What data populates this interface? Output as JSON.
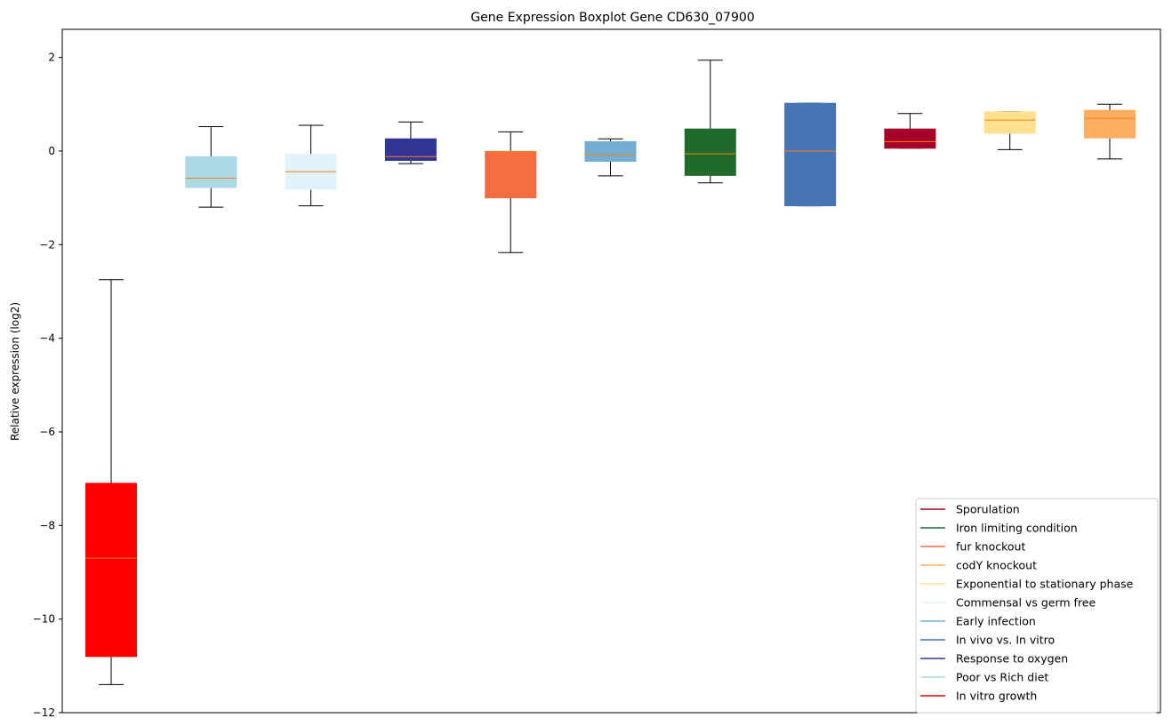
{
  "chart_data": {
    "type": "boxplot",
    "title": "Gene Expression Boxplot Gene CD630_07900",
    "xlabel": "",
    "ylabel": "Relative expression (log2)",
    "ylim": [
      -12.0,
      2.6
    ],
    "yticks": [
      2,
      0,
      -2,
      -4,
      -6,
      -8,
      -10,
      -12
    ],
    "ytick_labels": [
      "2",
      "0",
      "−2",
      "−4",
      "−6",
      "−8",
      "−10",
      "−12"
    ],
    "grid": false,
    "legend_position": "bottom-right",
    "boxes": [
      {
        "name": "In vitro growth",
        "color": "#ff0000",
        "whisker_low": -11.4,
        "q1": -10.8,
        "median": -8.7,
        "q3": -7.1,
        "whisker_high": -2.75
      },
      {
        "name": "Poor vs Rich diet",
        "color": "#add8e6",
        "whisker_low": -1.2,
        "q1": -0.78,
        "median": -0.58,
        "q3": -0.12,
        "whisker_high": 0.52
      },
      {
        "name": "Commensal vs germ free",
        "color": "#e0f3f8",
        "whisker_low": -1.17,
        "q1": -0.82,
        "median": -0.44,
        "q3": -0.07,
        "whisker_high": 0.55
      },
      {
        "name": "Response to oxygen",
        "color": "#313695",
        "whisker_low": -0.27,
        "q1": -0.2,
        "median": -0.12,
        "q3": 0.26,
        "whisker_high": 0.62
      },
      {
        "name": "fur knockout",
        "color": "#f46d43",
        "whisker_low": -2.17,
        "q1": -1.0,
        "median": -0.02,
        "q3": -0.01,
        "whisker_high": 0.41
      },
      {
        "name": "Early infection",
        "color": "#74add1",
        "whisker_low": -0.53,
        "q1": -0.22,
        "median": -0.08,
        "q3": 0.2,
        "whisker_high": 0.26
      },
      {
        "name": "Iron limiting condition",
        "color": "#1f6b2b",
        "whisker_low": -0.68,
        "q1": -0.52,
        "median": -0.06,
        "q3": 0.47,
        "whisker_high": 1.94
      },
      {
        "name": "In vivo vs. In vitro",
        "color": "#4575b4",
        "whisker_low": -1.17,
        "q1": -1.17,
        "median": 0.0,
        "q3": 1.02,
        "whisker_high": 1.02
      },
      {
        "name": "Sporulation",
        "color": "#a50026",
        "whisker_low": 0.06,
        "q1": 0.06,
        "median": 0.2,
        "q3": 0.47,
        "whisker_high": 0.8
      },
      {
        "name": "Exponential to stationary phase",
        "color": "#fee090",
        "whisker_low": 0.03,
        "q1": 0.38,
        "median": 0.66,
        "q3": 0.84,
        "whisker_high": 0.84
      },
      {
        "name": "codY knockout",
        "color": "#fdae61",
        "whisker_low": -0.17,
        "q1": 0.28,
        "median": 0.7,
        "q3": 0.87,
        "whisker_high": 1.0
      }
    ],
    "median_color": "#ff7f0e",
    "legend": [
      {
        "label": "Sporulation",
        "color": "#a50026"
      },
      {
        "label": "Iron limiting condition",
        "color": "#1f6b2b"
      },
      {
        "label": "fur knockout",
        "color": "#f46d43"
      },
      {
        "label": "codY knockout",
        "color": "#fdae61"
      },
      {
        "label": "Exponential to stationary phase",
        "color": "#fee090"
      },
      {
        "label": "Commensal vs germ free",
        "color": "#e0f3f8"
      },
      {
        "label": "Early infection",
        "color": "#74add1"
      },
      {
        "label": "In vivo vs. In vitro",
        "color": "#4575b4"
      },
      {
        "label": "Response to oxygen",
        "color": "#313695"
      },
      {
        "label": "Poor vs Rich diet",
        "color": "#add8e6"
      },
      {
        "label": "In vitro growth",
        "color": "#ff0000"
      }
    ]
  }
}
